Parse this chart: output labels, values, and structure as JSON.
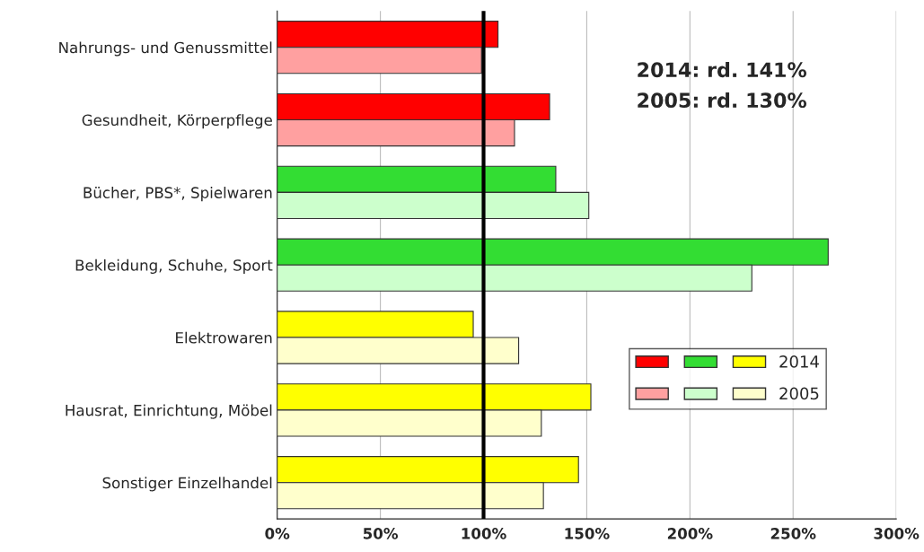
{
  "chart_data": {
    "type": "bar",
    "orientation": "horizontal",
    "categories": [
      "Nahrungs- und Genussmittel",
      "Gesundheit, Körperpflege",
      "Bücher, PBS*, Spielwaren",
      "Bekleidung, Schuhe, Sport",
      "Elektrowaren",
      "Hausrat, Einrichtung, Möbel",
      "Sonstiger Einzelhandel"
    ],
    "series": [
      {
        "name": "2014",
        "colors": [
          "#ff0000",
          "#ff0000",
          "#33dd33",
          "#33dd33",
          "#ffff00",
          "#ffff00",
          "#ffff00"
        ],
        "values": [
          107,
          132,
          135,
          267,
          95,
          152,
          146
        ]
      },
      {
        "name": "2005",
        "colors": [
          "#ffa0a0",
          "#ffa0a0",
          "#ccffcc",
          "#ccffcc",
          "#ffffcc",
          "#ffffcc",
          "#ffffcc"
        ],
        "values": [
          99,
          115,
          151,
          230,
          117,
          128,
          129
        ]
      }
    ],
    "xlim": [
      0,
      300
    ],
    "xticks": [
      {
        "value": 0,
        "label": "0%"
      },
      {
        "value": 50,
        "label": "50%"
      },
      {
        "value": 100,
        "label": "100%"
      },
      {
        "value": 150,
        "label": "150%"
      },
      {
        "value": 200,
        "label": "200%"
      },
      {
        "value": 250,
        "label": "250%"
      },
      {
        "value": 300,
        "label": "300%"
      }
    ],
    "ref_lines": [
      {
        "axis": "x",
        "value": 100,
        "color": "#000000"
      }
    ],
    "annotations": [
      "2014: rd. 141%",
      "2005: rd. 130%"
    ],
    "grid": "x",
    "legend": "lower right"
  }
}
